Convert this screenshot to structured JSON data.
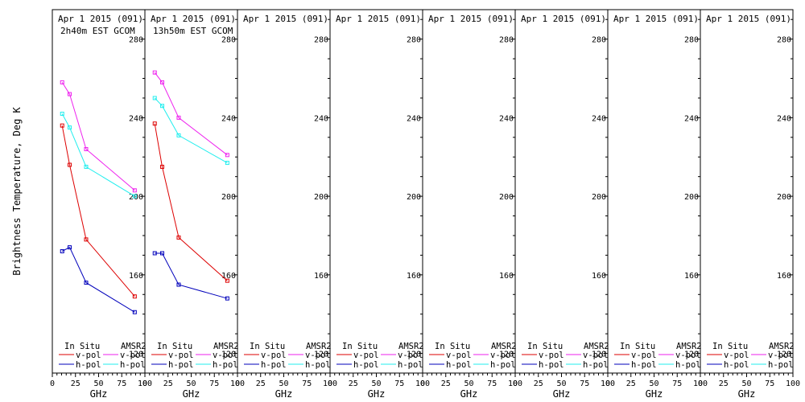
{
  "chart_data": {
    "type": "line",
    "ylabel": "Brightness Temperature, Deg K",
    "xlabel": "GHz",
    "ylim": [
      110,
      295
    ],
    "xlim": [
      0,
      100
    ],
    "yticks": [
      120,
      160,
      200,
      240,
      280
    ],
    "xticks": [
      0,
      25,
      50,
      75,
      100
    ],
    "legend": {
      "in_situ_header": "In Situ",
      "amsr2_header": "AMSR2",
      "vpol": "v-pol",
      "hpol": "h-pol"
    },
    "colors": {
      "in_situ_v": "#dd0000",
      "in_situ_h": "#0000bb",
      "amsr2_v": "#ee22ee",
      "amsr2_h": "#22eeee"
    },
    "panels": [
      {
        "title": "Apr 1 2015 (091)",
        "subtitle": "2h40m EST GCOM",
        "series": [
          {
            "name": "in_situ_v",
            "x": [
              10.65,
              18.7,
              36.5,
              89.0
            ],
            "y": [
              236,
              216,
              178,
              149
            ]
          },
          {
            "name": "in_situ_h",
            "x": [
              10.65,
              18.7,
              36.5,
              89.0
            ],
            "y": [
              172,
              174,
              156,
              141
            ]
          },
          {
            "name": "amsr2_v",
            "x": [
              10.65,
              18.7,
              36.5,
              89.0
            ],
            "y": [
              258,
              252,
              224,
              203
            ]
          },
          {
            "name": "amsr2_h",
            "x": [
              10.65,
              18.7,
              36.5,
              89.0
            ],
            "y": [
              242,
              235,
              215,
              200
            ]
          }
        ]
      },
      {
        "title": "Apr 1 2015 (091)",
        "subtitle": "13h50m EST GCOM",
        "series": [
          {
            "name": "in_situ_v",
            "x": [
              10.65,
              18.7,
              36.5,
              89.0
            ],
            "y": [
              237,
              215,
              179,
              157
            ]
          },
          {
            "name": "in_situ_h",
            "x": [
              10.65,
              18.7,
              36.5,
              89.0
            ],
            "y": [
              171,
              171,
              155,
              148
            ]
          },
          {
            "name": "amsr2_v",
            "x": [
              10.65,
              18.7,
              36.5,
              89.0
            ],
            "y": [
              263,
              258,
              240,
              221
            ]
          },
          {
            "name": "amsr2_h",
            "x": [
              10.65,
              18.7,
              36.5,
              89.0
            ],
            "y": [
              250,
              246,
              231,
              217
            ]
          }
        ]
      },
      {
        "title": "Apr 1 2015 (091)",
        "subtitle": "",
        "series": []
      },
      {
        "title": "Apr 1 2015 (091)",
        "subtitle": "",
        "series": []
      },
      {
        "title": "Apr 1 2015 (091)",
        "subtitle": "",
        "series": []
      },
      {
        "title": "Apr 1 2015 (091)",
        "subtitle": "",
        "series": []
      },
      {
        "title": "Apr 1 2015 (091)",
        "subtitle": "",
        "series": []
      },
      {
        "title": "Apr 1 2015 (091)",
        "subtitle": "",
        "series": []
      }
    ]
  }
}
